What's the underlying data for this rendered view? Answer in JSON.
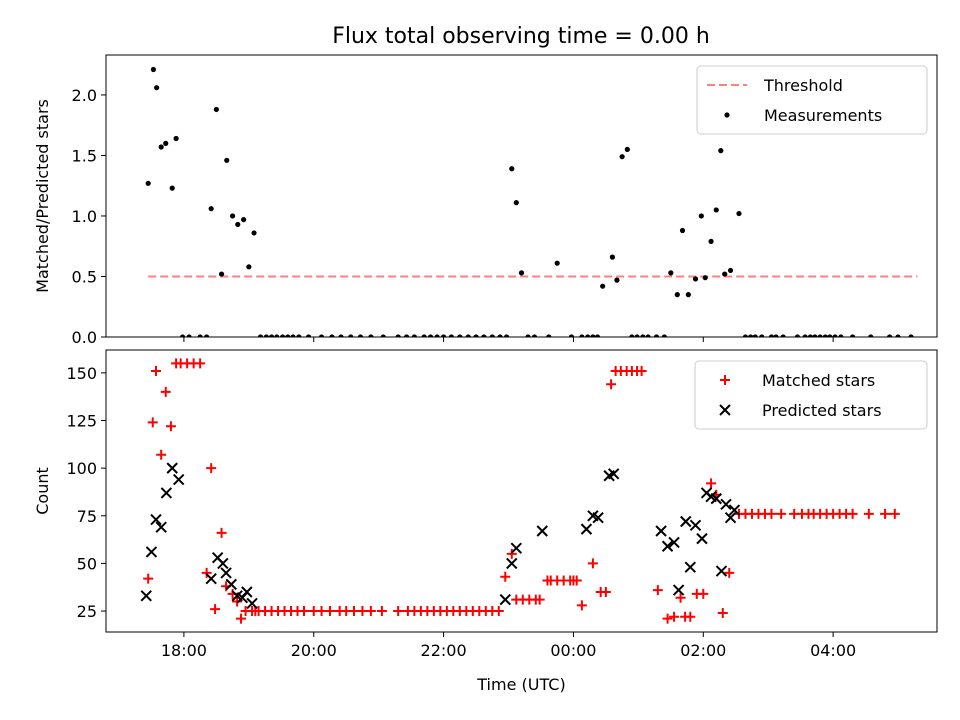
{
  "colors": {
    "threshold": "#ff7f7f",
    "measurement": "#000000",
    "matched": "#ff0000",
    "predicted": "#000000"
  },
  "chart_data": [
    {
      "type": "scatter",
      "title": "Flux total observing time = 0.00 h",
      "xlabel": "",
      "ylabel": "Matched/Predicted stars",
      "xlim": [
        16.8,
        29.6
      ],
      "ylim": [
        0,
        2.33
      ],
      "xticks": [
        18,
        20,
        22,
        24,
        26,
        28
      ],
      "xtick_labels": [
        "",
        "",
        "",
        "",
        "",
        ""
      ],
      "yticks": [
        0,
        0.5,
        1,
        1.5,
        2
      ],
      "ytick_labels": [
        "0.0",
        "0.5",
        "1.0",
        "1.5",
        "2.0"
      ],
      "legend": {
        "position": "top-right",
        "entries": [
          "Threshold",
          "Measurements"
        ]
      },
      "series": [
        {
          "name": "Threshold",
          "kind": "line",
          "style": "dashed",
          "x": [
            17.45,
            29.3
          ],
          "y": [
            0.5,
            0.5
          ]
        },
        {
          "name": "Measurements",
          "kind": "scatter",
          "x": [
            17.45,
            17.53,
            17.58,
            17.65,
            17.72,
            17.82,
            17.88,
            17.98,
            18.08,
            18.25,
            18.35,
            18.42,
            18.5,
            18.58,
            18.66,
            18.75,
            18.83,
            18.92,
            19.0,
            19.08,
            19.18,
            19.27,
            19.35,
            19.43,
            19.52,
            19.6,
            19.68,
            19.77,
            19.92,
            20.12,
            20.28,
            20.42,
            20.57,
            20.72,
            20.88,
            21.07,
            21.3,
            21.43,
            21.55,
            21.7,
            21.8,
            21.9,
            22.0,
            22.12,
            22.25,
            22.38,
            22.5,
            22.62,
            22.75,
            22.87,
            22.97,
            23.05,
            23.12,
            23.2,
            23.3,
            23.4,
            23.62,
            23.75,
            23.97,
            24.13,
            24.22,
            24.3,
            24.37,
            24.45,
            24.6,
            24.67,
            24.75,
            24.83,
            24.9,
            24.98,
            25.07,
            25.15,
            25.28,
            25.4,
            25.5,
            25.6,
            25.68,
            25.77,
            25.88,
            25.97,
            26.03,
            26.12,
            26.2,
            26.27,
            26.33,
            26.42,
            26.55,
            26.65,
            26.73,
            26.8,
            26.9,
            27.05,
            27.12,
            27.23,
            27.45,
            27.57,
            27.65,
            27.72,
            27.8,
            27.88,
            27.95,
            28.03,
            28.12,
            28.3,
            28.58,
            28.87,
            29.0,
            29.2
          ],
          "y": [
            1.27,
            2.21,
            2.06,
            1.57,
            1.6,
            1.23,
            1.64,
            0,
            0,
            0,
            0,
            1.06,
            1.88,
            0.52,
            1.46,
            1.0,
            0.93,
            0.97,
            0.58,
            0.86,
            0,
            0,
            0,
            0,
            0,
            0,
            0,
            0,
            0,
            0,
            0,
            0,
            0,
            0,
            0,
            0,
            0,
            0,
            0,
            0,
            0,
            0,
            0,
            0,
            0,
            0,
            0,
            0,
            0,
            0,
            0,
            1.39,
            1.11,
            0.53,
            0,
            0,
            0,
            0.61,
            0,
            0,
            0,
            0,
            0,
            0.42,
            0.66,
            0.47,
            1.49,
            1.55,
            0,
            0,
            0,
            0,
            0,
            0,
            0.53,
            0.35,
            0.88,
            0.35,
            0.48,
            1.0,
            0.49,
            0.79,
            1.05,
            1.54,
            0.52,
            0.55,
            1.02,
            0,
            0,
            0,
            0,
            0,
            0,
            0,
            0,
            0,
            0,
            0,
            0,
            0,
            0,
            0,
            0,
            0,
            0,
            0,
            0,
            0
          ]
        }
      ]
    },
    {
      "type": "scatter",
      "title": "",
      "xlabel": "Time (UTC)",
      "ylabel": "Count",
      "xlim": [
        16.8,
        29.6
      ],
      "ylim": [
        14,
        162
      ],
      "xticks": [
        18,
        20,
        22,
        24,
        26,
        28
      ],
      "xtick_labels": [
        "18:00",
        "20:00",
        "22:00",
        "00:00",
        "02:00",
        "04:00"
      ],
      "yticks": [
        25,
        50,
        75,
        100,
        125,
        150
      ],
      "ytick_labels": [
        "25",
        "50",
        "75",
        "100",
        "125",
        "150"
      ],
      "legend": {
        "position": "top-right",
        "entries": [
          "Matched stars",
          "Predicted stars"
        ]
      },
      "series": [
        {
          "name": "Matched stars",
          "marker": "+",
          "x": [
            17.45,
            17.52,
            17.57,
            17.65,
            17.72,
            17.8,
            17.88,
            17.95,
            18.05,
            18.15,
            18.25,
            18.35,
            18.42,
            18.48,
            18.58,
            18.65,
            18.75,
            18.82,
            18.88,
            18.95,
            19.05,
            19.1,
            19.15,
            19.25,
            19.35,
            19.45,
            19.55,
            19.65,
            19.75,
            19.85,
            20.0,
            20.12,
            20.25,
            20.4,
            20.5,
            20.62,
            20.75,
            20.88,
            21.05,
            21.3,
            21.45,
            21.55,
            21.65,
            21.75,
            21.85,
            21.95,
            22.05,
            22.15,
            22.25,
            22.35,
            22.45,
            22.55,
            22.65,
            22.75,
            22.85,
            22.95,
            23.05,
            23.12,
            23.22,
            23.32,
            23.42,
            23.48,
            23.6,
            23.65,
            23.75,
            23.85,
            23.95,
            24.0,
            24.05,
            24.13,
            24.3,
            24.42,
            24.5,
            24.58,
            24.65,
            24.73,
            24.82,
            24.9,
            24.98,
            25.05,
            25.3,
            25.45,
            25.55,
            25.65,
            25.72,
            25.8,
            25.9,
            26.0,
            26.12,
            26.2,
            26.3,
            26.4,
            26.55,
            26.65,
            26.75,
            26.85,
            26.95,
            27.05,
            27.2,
            27.4,
            27.52,
            27.62,
            27.7,
            27.8,
            27.9,
            28.0,
            28.1,
            28.2,
            28.3,
            28.55,
            28.8,
            28.95
          ],
          "y": [
            42,
            124,
            151,
            107,
            140,
            122,
            155,
            155,
            155,
            155,
            155,
            45,
            100,
            26,
            66,
            38,
            34,
            30,
            21,
            25,
            25,
            25,
            25,
            25,
            25,
            25,
            25,
            25,
            25,
            25,
            25,
            25,
            25,
            25,
            25,
            25,
            25,
            25,
            25,
            25,
            25,
            25,
            25,
            25,
            25,
            25,
            25,
            25,
            25,
            25,
            25,
            25,
            25,
            25,
            25,
            43,
            55,
            31,
            31,
            31,
            31,
            31,
            41,
            41,
            41,
            41,
            41,
            41,
            41,
            28,
            50,
            35,
            35,
            144,
            151,
            151,
            151,
            151,
            151,
            151,
            36,
            21,
            22,
            32,
            22,
            22,
            34,
            34,
            92,
            86,
            24,
            45,
            76,
            76,
            76,
            76,
            76,
            76,
            76,
            76,
            76,
            76,
            76,
            76,
            76,
            76,
            76,
            76,
            76,
            76,
            76,
            76
          ]
        },
        {
          "name": "Predicted stars",
          "marker": "x",
          "x": [
            17.42,
            17.5,
            17.57,
            17.65,
            17.73,
            17.82,
            17.92,
            18.42,
            18.52,
            18.6,
            18.65,
            18.73,
            18.82,
            18.9,
            18.97,
            19.05,
            22.95,
            23.05,
            23.12,
            23.52,
            24.2,
            24.3,
            24.38,
            24.55,
            24.62,
            25.35,
            25.45,
            25.55,
            25.62,
            25.73,
            25.8,
            25.88,
            25.98,
            26.05,
            26.12,
            26.2,
            26.28,
            26.35,
            26.42,
            26.48
          ],
          "y": [
            33,
            56,
            73,
            69,
            87,
            100,
            94,
            42,
            53,
            50,
            45,
            39,
            33,
            32,
            35,
            29,
            31,
            50,
            58,
            67,
            68,
            75,
            74,
            96,
            97,
            67,
            59,
            61,
            36,
            72,
            48,
            70,
            63,
            87,
            85,
            84,
            46,
            81,
            74,
            78
          ]
        }
      ]
    }
  ]
}
